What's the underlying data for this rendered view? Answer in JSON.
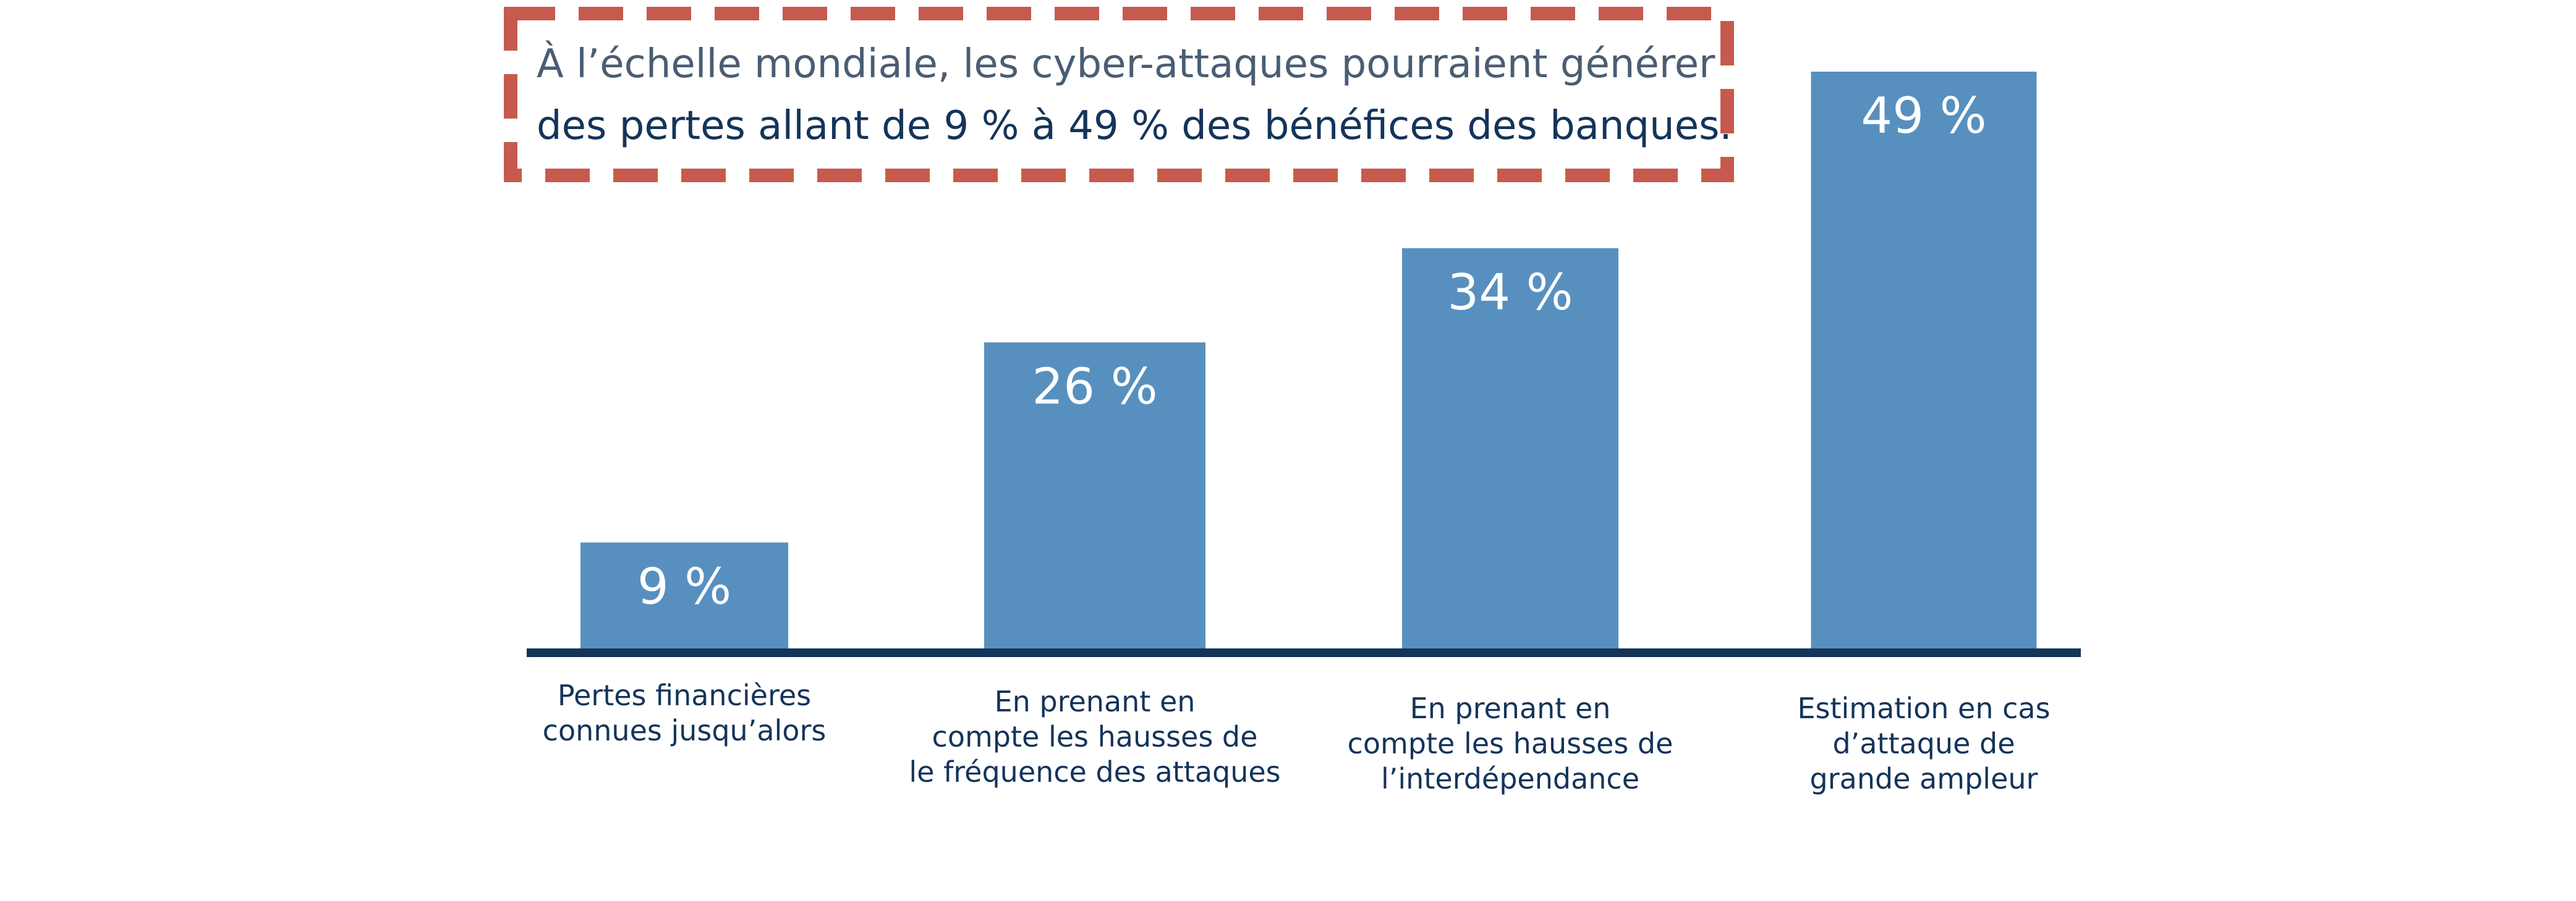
{
  "callout": {
    "line1": "À l’échelle mondiale, les cyber-attaques pourraient générer",
    "line2": "des pertes allant de 9 % à 49 % des bénéfices des banques."
  },
  "colors": {
    "bar": "#5790bf",
    "axis": "#14345a",
    "callout_border": "#c65a4f",
    "label_text": "#14345a",
    "value_text": "#ffffff"
  },
  "chart_data": {
    "type": "bar",
    "categories": [
      [
        "Pertes financières",
        "connues jusqu’alors"
      ],
      [
        "En prenant en",
        "compte les hausses de",
        "le fréquence des attaques"
      ],
      [
        "En prenant en",
        "compte les hausses de",
        "l’interdépendance"
      ],
      [
        "Estimation en cas",
        "d’attaque de",
        "grande ampleur"
      ]
    ],
    "values": [
      9,
      26,
      34,
      49
    ],
    "value_labels": [
      "9 %",
      "26 %",
      "34 %",
      "49 %"
    ],
    "unit": "%",
    "title": "",
    "xlabel": "",
    "ylabel": "",
    "ylim": [
      0,
      49
    ],
    "grid": false,
    "legend": "none"
  }
}
